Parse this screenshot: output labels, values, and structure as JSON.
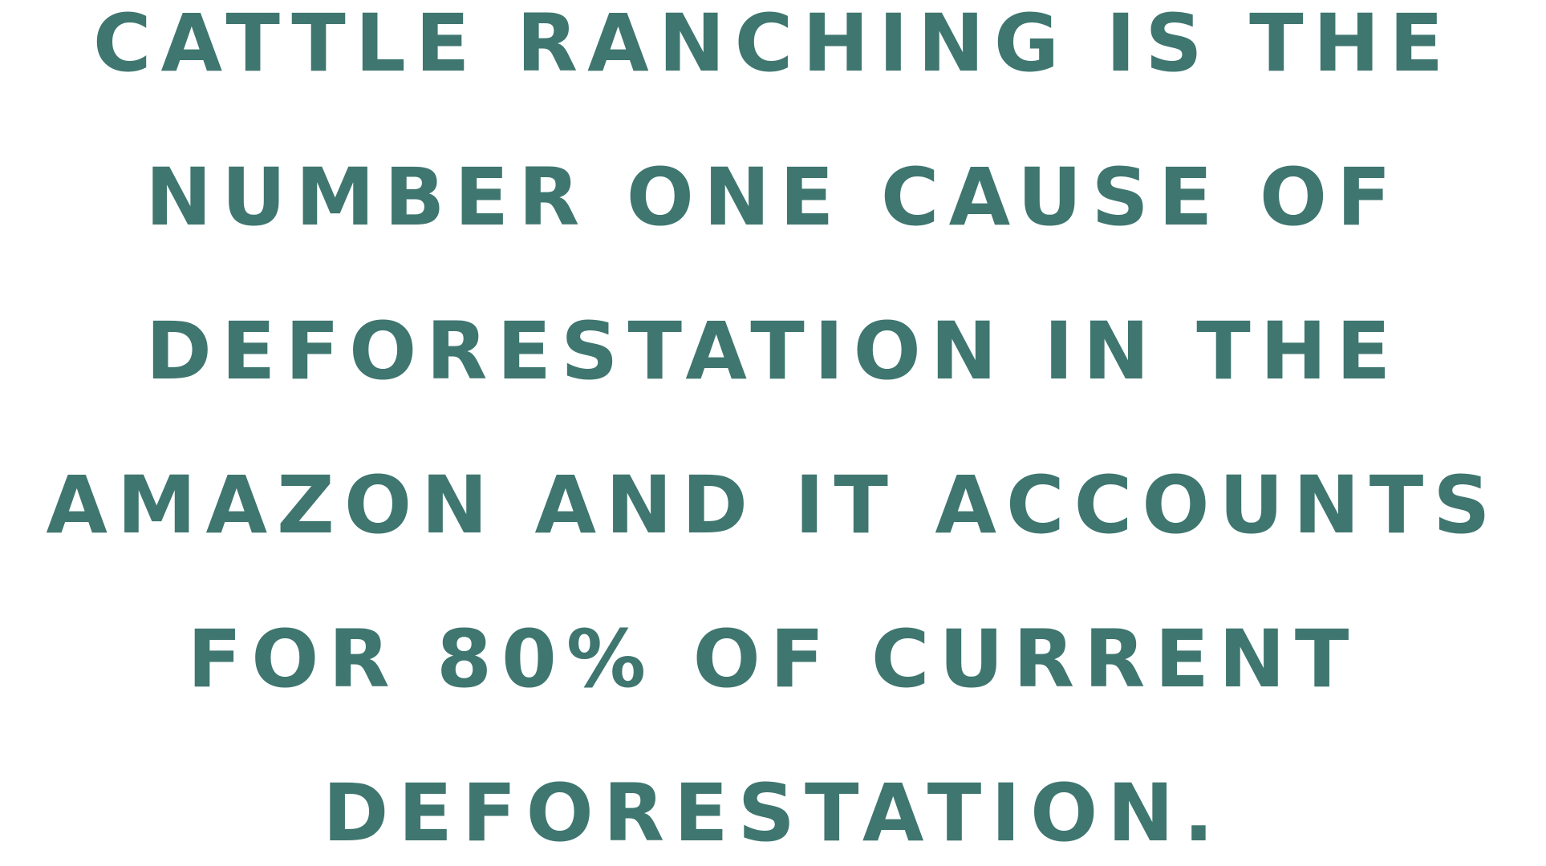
{
  "statement": {
    "lines": [
      "CATTLE RANCHING IS THE",
      "NUMBER ONE CAUSE OF",
      "DEFORESTATION IN THE",
      "AMAZON AND IT ACCOUNTS",
      "FOR 80% OF CURRENT",
      "DEFORESTATION."
    ],
    "text_color": "#3f7670",
    "background_color": "#ffffff"
  }
}
